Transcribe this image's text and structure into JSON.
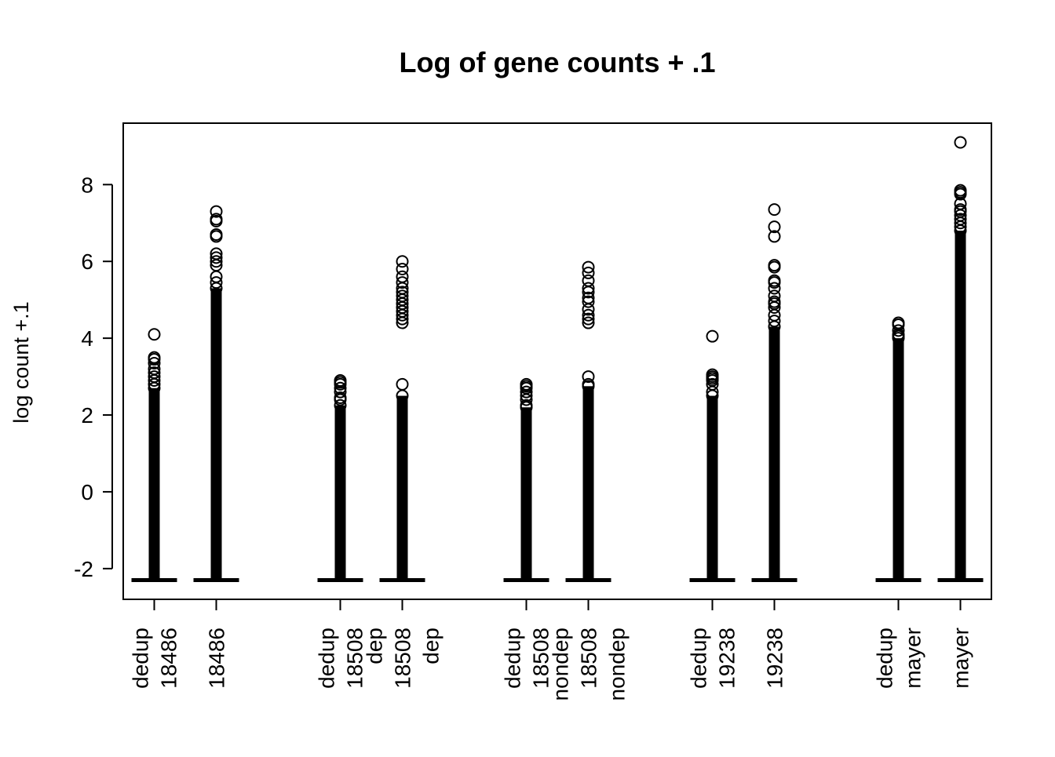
{
  "chart_data": {
    "type": "box",
    "title": "Log of gene counts + .1",
    "xlabel": "",
    "ylabel": "log count +.1",
    "ylim": [
      -2.8,
      9.6
    ],
    "yticks": [
      -2,
      0,
      2,
      4,
      6,
      8
    ],
    "grid": false,
    "legend": "none",
    "colors": {
      "foreground": "#000000",
      "background": "#ffffff"
    },
    "groups": [
      {
        "label_lines": [
          "dedup",
          "18486"
        ],
        "x": 1,
        "median": -2.3,
        "min": -2.35,
        "outlier_max": 4.1,
        "outliers": [
          4.1,
          3.5,
          3.45,
          3.35,
          3.2,
          3.1,
          3.0,
          2.9,
          2.8,
          2.7
        ]
      },
      {
        "label_lines": [
          "18486"
        ],
        "x": 2,
        "median": -2.3,
        "min": -2.35,
        "outlier_max": 7.3,
        "outliers": [
          7.3,
          7.1,
          7.05,
          6.7,
          6.65,
          6.2,
          6.1,
          6.0,
          5.9,
          5.6,
          5.45,
          5.3
        ]
      },
      {
        "label_lines": [
          "dedup",
          "18508"
        ],
        "x": 4,
        "median": -2.3,
        "min": -2.35,
        "outlier_max": 2.9,
        "outliers": [
          2.9,
          2.85,
          2.8,
          2.7,
          2.6,
          2.45,
          2.4,
          2.25
        ]
      },
      {
        "label_lines": [
          "dep",
          "18508",
          "dep"
        ],
        "x": 5,
        "median": -2.3,
        "min": -2.35,
        "outlier_max": 6.0,
        "outliers": [
          6.0,
          5.8,
          5.6,
          5.45,
          5.3,
          5.2,
          5.1,
          5.0,
          4.9,
          4.8,
          4.7,
          4.6,
          4.5,
          4.4,
          2.8,
          2.5
        ]
      },
      {
        "label_lines": [
          "dedup",
          "18508"
        ],
        "x": 7,
        "median": -2.3,
        "min": -2.35,
        "outlier_max": 2.8,
        "outliers": [
          2.8,
          2.75,
          2.7,
          2.6,
          2.5,
          2.4,
          2.25,
          2.2
        ]
      },
      {
        "label_lines": [
          "nondep",
          "18508",
          "nondep"
        ],
        "x": 8,
        "median": -2.3,
        "min": -2.35,
        "outlier_max": 5.85,
        "outliers": [
          5.85,
          5.7,
          5.5,
          5.3,
          5.2,
          5.05,
          4.95,
          4.75,
          4.6,
          4.5,
          4.4,
          3.0,
          2.8,
          2.75
        ]
      },
      {
        "label_lines": [
          "dedup",
          "19238"
        ],
        "x": 10,
        "median": -2.3,
        "min": -2.35,
        "outlier_max": 4.05,
        "outliers": [
          4.05,
          3.05,
          3.0,
          2.95,
          2.9,
          2.8,
          2.6,
          2.5
        ]
      },
      {
        "label_lines": [
          "19238"
        ],
        "x": 11,
        "median": -2.3,
        "min": -2.35,
        "outlier_max": 7.35,
        "outliers": [
          7.35,
          6.9,
          6.65,
          5.9,
          5.85,
          5.5,
          5.45,
          5.3,
          5.1,
          4.95,
          4.9,
          4.8,
          4.6,
          4.45,
          4.3
        ]
      },
      {
        "label_lines": [
          "dedup",
          "mayer"
        ],
        "x": 13,
        "median": -2.3,
        "min": -2.35,
        "outlier_max": 4.4,
        "outliers": [
          4.4,
          4.35,
          4.2,
          4.1,
          4.05,
          4.0
        ]
      },
      {
        "label_lines": [
          "mayer"
        ],
        "x": 14,
        "median": -2.3,
        "min": -2.35,
        "outlier_max": 9.1,
        "outliers": [
          9.1,
          7.85,
          7.8,
          7.75,
          7.5,
          7.35,
          7.3,
          7.2,
          7.1,
          7.0,
          6.9,
          6.8
        ]
      }
    ],
    "xlim": [
      0.5,
      14.5
    ]
  }
}
